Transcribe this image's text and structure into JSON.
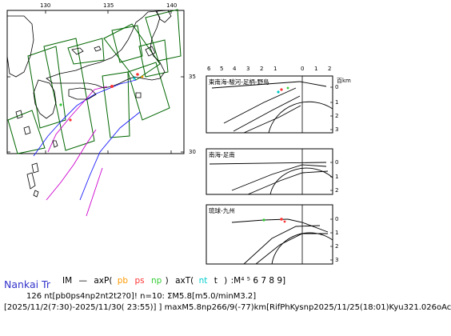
{
  "map": {
    "lon_ticks": [
      "130",
      "135",
      "140"
    ],
    "lat_ticks": [
      "35",
      "30"
    ]
  },
  "sections": {
    "x_ticks": [
      "6",
      "5",
      "4",
      "3",
      "2",
      "1",
      "0",
      "1",
      "2"
    ],
    "depth_unit": "百km",
    "panels": [
      {
        "label": "東南海-駿河-足柄-野島",
        "depth_ticks": [
          "0",
          "1",
          "2",
          "3"
        ]
      },
      {
        "label": "南海-足南",
        "depth_ticks": [
          "0",
          "1",
          "2"
        ]
      },
      {
        "label": "琉球-九州",
        "depth_ticks": [
          "0",
          "1",
          "2",
          "3"
        ]
      }
    ]
  },
  "footer": {
    "title": "Nankai Tr",
    "legend": {
      "im": "IM",
      "dash": "—",
      "axp_open": "axP(",
      "pb": "pb",
      "ps": "ps",
      "np": "np",
      "axp_close": ")",
      "axt_open": "axT(",
      "nt": "nt",
      "t": "t",
      "axt_close": ")",
      "mag_scale": ":M⁴ ⁵ 6 7 8 9]"
    },
    "stats_line": "126 nt[pb0ps4np2nt2t2?0]! n=10: ΣM5.8[m5.0/minM3.2]",
    "period_line": "[2025/11/2(7:30)-2025/11/30( 23:55)] ] maxM5.8np266/9(-77)km[RifPhKysnp2025/11/25(18:01)Kyu321.026oAc"
  },
  "colors": {
    "coast": "#000000",
    "zones": "#006600",
    "trench_blue": "#1a1aff",
    "trench_magenta": "#cc00cc",
    "pb": "#ff9900",
    "ps": "#ff3333",
    "np": "#33cc33",
    "nt": "#00cccc",
    "title": "#3333cc"
  }
}
